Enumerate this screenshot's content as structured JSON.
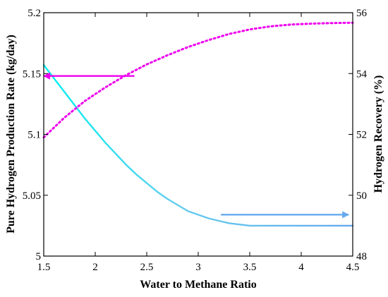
{
  "chart_data": {
    "type": "line",
    "xlabel": "Water to Methane Ratio",
    "ylabel_left": "Pure Hydrogen Production Rate (kg/day)",
    "ylabel_right": "Hydrogen Recovery (%)",
    "xlim": [
      1.5,
      4.5
    ],
    "ylim_left": [
      5.0,
      5.2
    ],
    "ylim_right": [
      48,
      56
    ],
    "x_ticks": [
      "1.5",
      "2",
      "2.5",
      "3",
      "3.5",
      "4",
      "4.5"
    ],
    "y_left_ticks": [
      "5",
      "5.05",
      "5.1",
      "5.15",
      "5.2"
    ],
    "y_right_ticks": [
      "48",
      "50",
      "52",
      "54",
      "56"
    ],
    "grid": false,
    "series": [
      {
        "axis": "left",
        "style": "solid",
        "color_start": "#00f0f0",
        "color_end": "#66aaee",
        "x": [
          1.5,
          1.6,
          1.7,
          1.8,
          1.9,
          2.0,
          2.1,
          2.2,
          2.3,
          2.4,
          2.5,
          2.6,
          2.7,
          2.8,
          2.9,
          3.0,
          3.1,
          3.2,
          3.3,
          3.4,
          3.5,
          3.6,
          3.8,
          4.0,
          4.2,
          4.5
        ],
        "values": [
          5.157,
          5.146,
          5.135,
          5.124,
          5.113,
          5.103,
          5.093,
          5.084,
          5.075,
          5.067,
          5.06,
          5.053,
          5.047,
          5.042,
          5.037,
          5.034,
          5.031,
          5.029,
          5.027,
          5.026,
          5.025,
          5.025,
          5.025,
          5.025,
          5.025,
          5.025
        ]
      },
      {
        "axis": "right",
        "style": "dotted",
        "color": "#ee00ee",
        "x": [
          1.5,
          1.7,
          1.9,
          2.1,
          2.3,
          2.5,
          2.7,
          2.9,
          3.1,
          3.3,
          3.5,
          3.7,
          3.9,
          4.1,
          4.3,
          4.5
        ],
        "values": [
          51.9,
          52.55,
          53.1,
          53.55,
          53.95,
          54.3,
          54.6,
          54.87,
          55.1,
          55.3,
          55.45,
          55.55,
          55.61,
          55.64,
          55.66,
          55.67
        ]
      }
    ],
    "arrows": [
      {
        "points_to": "left",
        "color": "#ee00ee",
        "y_axis": "left",
        "y": 5.148,
        "x_from": 2.38,
        "x_to": 1.5
      },
      {
        "points_to": "right",
        "color": "#66aaee",
        "y_axis": "left",
        "y": 5.034,
        "x_from": 3.22,
        "x_to": 4.46
      }
    ]
  }
}
